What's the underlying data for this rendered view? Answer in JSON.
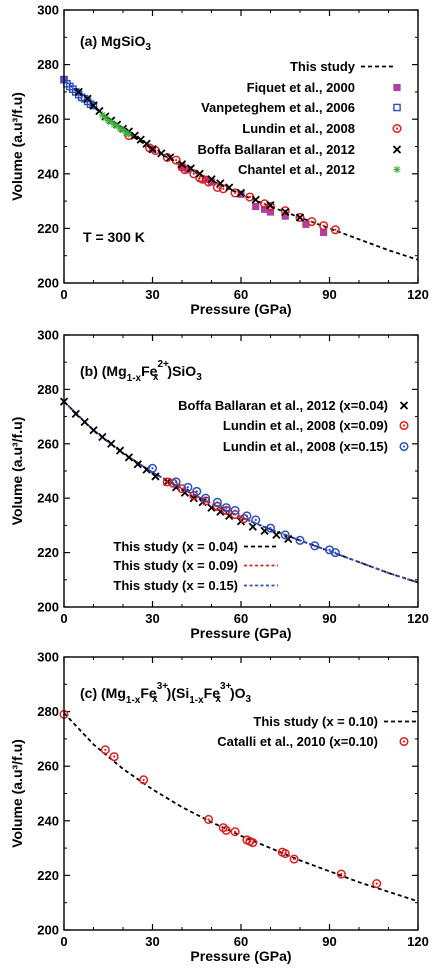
{
  "chart_data": [
    {
      "type": "scatter",
      "title": "(a) MgSiO3",
      "title_parts": [
        "(a) MgSiO",
        "3"
      ],
      "annotation": "T = 300 K",
      "xlabel": "Pressure (GPa)",
      "ylabel": "Volume (a.u³/f.u)",
      "xlim": [
        0,
        120
      ],
      "ylim": [
        200,
        300
      ],
      "xticks": [
        0,
        30,
        60,
        90,
        120
      ],
      "yticks": [
        200,
        220,
        240,
        260,
        280,
        300
      ],
      "legend_position": "top-right",
      "series": [
        {
          "name": "This study",
          "kind": "line",
          "color": "#000000",
          "x": [
            0,
            10,
            20,
            30,
            40,
            50,
            60,
            70,
            80,
            90,
            100,
            110,
            120
          ],
          "y": [
            274.5,
            264.5,
            256.0,
            249.0,
            243.0,
            237.5,
            232.5,
            228.0,
            224.0,
            220.0,
            216.0,
            212.0,
            208.5
          ]
        },
        {
          "name": "Fiquet et al., 2000",
          "marker": "square",
          "color": "#b040a0",
          "x": [
            0,
            30,
            40,
            42,
            48,
            50,
            60,
            65,
            68,
            70,
            75,
            82,
            88
          ],
          "y": [
            274.5,
            249.0,
            242.5,
            241.5,
            238.0,
            237.0,
            232.5,
            228.0,
            227.0,
            226.0,
            224.5,
            221.5,
            218.5
          ]
        },
        {
          "name": "Vanpeteghem et al., 2006",
          "marker": "open-square",
          "color": "#2a50c0",
          "x": [
            0,
            1,
            2,
            3,
            4,
            5,
            6,
            7,
            8,
            9,
            10
          ],
          "y": [
            274.5,
            273.0,
            272.0,
            271.0,
            270.0,
            269.0,
            268.0,
            267.5,
            266.5,
            265.5,
            265.0
          ]
        },
        {
          "name": "Lundin et al., 2008",
          "marker": "open-circle",
          "color": "#e02020",
          "x": [
            22,
            29,
            31,
            35,
            38,
            40,
            41,
            44,
            46,
            47,
            49,
            52,
            54,
            58,
            63,
            68,
            70,
            75,
            80,
            84,
            88,
            92
          ],
          "y": [
            254.0,
            249.5,
            248.5,
            246.0,
            245.0,
            242.5,
            241.5,
            240.0,
            238.5,
            238.0,
            237.0,
            235.0,
            234.5,
            233.0,
            231.5,
            229.0,
            228.0,
            226.5,
            224.0,
            222.5,
            221.0,
            219.5
          ]
        },
        {
          "name": "Boffa Ballaran et al., 2012",
          "marker": "x",
          "color": "#000000",
          "x": [
            5,
            8,
            10,
            12,
            14,
            16,
            18,
            20,
            22,
            24,
            26,
            28,
            30,
            33,
            36,
            40,
            43,
            46,
            50,
            53,
            56,
            60,
            65,
            70,
            75,
            80
          ],
          "y": [
            270.0,
            267.5,
            265.0,
            263.0,
            261.0,
            259.5,
            258.0,
            256.5,
            255.5,
            254.0,
            252.5,
            251.0,
            249.0,
            247.5,
            246.0,
            243.5,
            242.0,
            240.0,
            238.0,
            236.5,
            235.0,
            233.0,
            230.5,
            228.5,
            226.0,
            224.0
          ]
        },
        {
          "name": "Chantel et al., 2012",
          "marker": "asterisk",
          "color": "#40b040",
          "x": [
            13,
            14,
            15,
            16,
            17,
            18,
            19,
            20,
            21,
            22
          ],
          "y": [
            261.5,
            260.5,
            259.5,
            259.0,
            258.0,
            257.5,
            256.5,
            256.0,
            255.0,
            254.5
          ]
        }
      ]
    },
    {
      "type": "scatter",
      "title": "(b) (Mg1-xFex2+)SiO3",
      "title_parts": [
        "(b) (Mg",
        "1-x",
        "Fe",
        "2+",
        "x",
        ")SiO",
        "3"
      ],
      "xlabel": "Pressure (GPa)",
      "ylabel": "Volume (a.u³/f.u)",
      "xlim": [
        0,
        120
      ],
      "ylim": [
        200,
        300
      ],
      "xticks": [
        0,
        30,
        60,
        90,
        120
      ],
      "yticks": [
        200,
        220,
        240,
        260,
        280,
        300
      ],
      "legend_position": "top-right / bottom-left",
      "series": [
        {
          "name": "Boffa Ballaran et al., 2012 (x=0.04)",
          "marker": "x",
          "color": "#000000",
          "x": [
            0,
            4,
            7,
            10,
            13,
            16,
            19,
            22,
            25,
            28,
            31,
            35,
            38,
            41,
            44,
            47,
            50,
            53,
            56,
            60,
            64,
            68,
            72,
            76
          ],
          "y": [
            275.5,
            271.0,
            268.0,
            265.0,
            262.5,
            260.0,
            257.5,
            255.0,
            252.5,
            250.5,
            248.0,
            246.0,
            244.0,
            242.0,
            240.0,
            238.5,
            236.5,
            235.0,
            233.5,
            231.5,
            229.5,
            228.0,
            226.5,
            225.0
          ]
        },
        {
          "name": "Lundin et al., 2008 (x=0.09)",
          "marker": "open-circle",
          "color": "#e02020",
          "x": [
            35,
            37,
            40,
            44,
            48,
            52,
            55,
            58,
            61
          ],
          "y": [
            246.0,
            245.5,
            243.5,
            241.0,
            239.0,
            237.0,
            235.5,
            234.0,
            232.5
          ]
        },
        {
          "name": "Lundin et al., 2008 (x=0.15)",
          "marker": "open-circle",
          "color": "#2a50c0",
          "x": [
            30,
            38,
            42,
            45,
            48,
            52,
            55,
            58,
            62,
            65,
            70,
            75,
            80,
            85,
            90,
            92
          ],
          "y": [
            251.0,
            246.0,
            244.0,
            242.5,
            240.0,
            238.5,
            236.5,
            235.5,
            233.5,
            232.0,
            229.0,
            226.5,
            224.5,
            222.5,
            221.0,
            220.0
          ]
        },
        {
          "name": "This study (x = 0.04)",
          "kind": "line",
          "color": "#000000",
          "x": [
            0,
            10,
            20,
            30,
            40,
            50,
            60,
            70,
            80,
            90,
            100,
            110,
            120
          ],
          "y": [
            275.5,
            265.0,
            256.5,
            249.5,
            243.5,
            238.0,
            233.0,
            228.5,
            224.5,
            220.5,
            216.5,
            212.5,
            209.0
          ]
        },
        {
          "name": "This study (x = 0.09)",
          "kind": "line",
          "color": "#e02020",
          "x": [
            0,
            10,
            20,
            30,
            40,
            50,
            60,
            70,
            80,
            90,
            100,
            110,
            120
          ],
          "y": [
            275.5,
            265.0,
            256.5,
            249.5,
            243.5,
            238.0,
            233.0,
            228.5,
            224.5,
            220.5,
            216.5,
            212.5,
            209.0
          ]
        },
        {
          "name": "This study (x = 0.15)",
          "kind": "line",
          "color": "#2a50c0",
          "x": [
            0,
            10,
            20,
            30,
            40,
            50,
            60,
            70,
            80,
            90,
            100,
            110,
            120
          ],
          "y": [
            275.5,
            265.0,
            256.5,
            249.5,
            243.5,
            238.0,
            233.0,
            228.5,
            224.5,
            220.5,
            216.5,
            212.5,
            209.0
          ]
        }
      ]
    },
    {
      "type": "scatter",
      "title": "(c) (Mg1-xFex3+)(Si1-xFex3+)O3",
      "title_parts": [
        "(c) (Mg",
        "1-x",
        "Fe",
        "3+",
        "x",
        ")(Si",
        "1-x",
        "Fe",
        "3+",
        "x",
        ")O",
        "3"
      ],
      "xlabel": "Pressure (GPa)",
      "ylabel": "Volume (a.u³/f.u)",
      "xlim": [
        0,
        120
      ],
      "ylim": [
        200,
        300
      ],
      "xticks": [
        0,
        30,
        60,
        90,
        120
      ],
      "yticks": [
        200,
        220,
        240,
        260,
        280,
        300
      ],
      "legend_position": "top-right",
      "series": [
        {
          "name": "This study (x = 0.10)",
          "kind": "line",
          "color": "#000000",
          "x": [
            0,
            10,
            20,
            30,
            40,
            50,
            60,
            70,
            80,
            90,
            100,
            110,
            120
          ],
          "y": [
            279.5,
            268.0,
            259.0,
            251.5,
            245.0,
            239.5,
            234.5,
            230.0,
            225.5,
            221.5,
            217.5,
            214.0,
            210.5
          ]
        },
        {
          "name": "Catalli et al., 2010 (x=0.10)",
          "marker": "open-circle",
          "color": "#e02020",
          "x": [
            0,
            14,
            17,
            27,
            49,
            54,
            55,
            58,
            62,
            63,
            64,
            74,
            75,
            78,
            94,
            106
          ],
          "y": [
            279.0,
            266.0,
            263.5,
            255.0,
            240.5,
            237.5,
            236.5,
            236.0,
            233.0,
            232.5,
            232.0,
            228.5,
            228.0,
            226.0,
            220.5,
            217.0
          ]
        }
      ]
    }
  ]
}
